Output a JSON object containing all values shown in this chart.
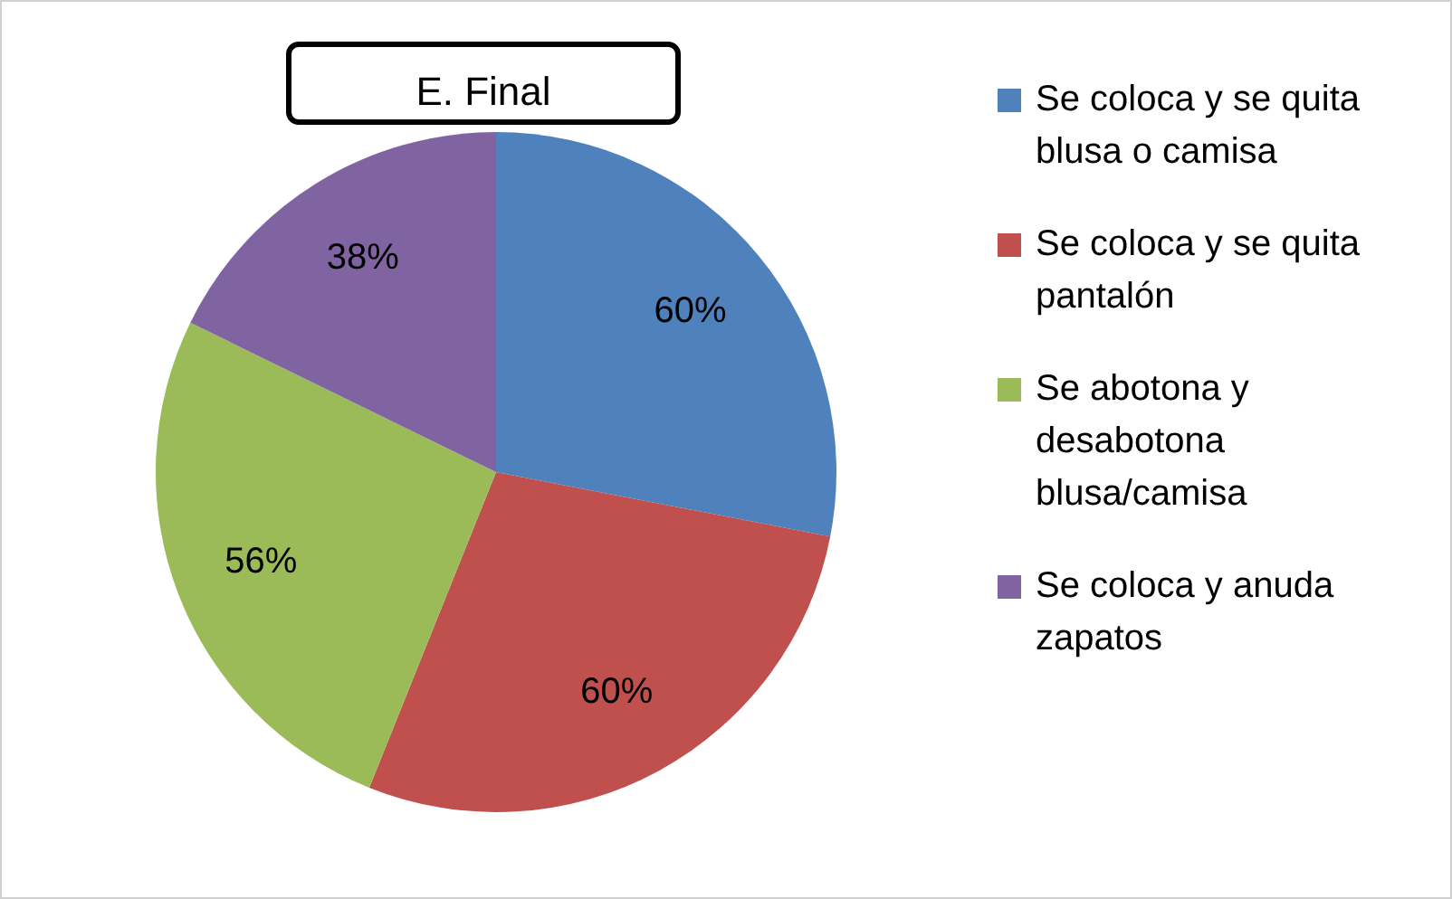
{
  "chart_data": {
    "type": "pie",
    "title": "E. Final",
    "categories": [
      "Se coloca y se quita blusa o camisa",
      "Se coloca y se quita pantalón",
      "Se abotona y desabotona blusa/camisa",
      "Se coloca y anuda zapatos"
    ],
    "values": [
      60,
      60,
      56,
      38
    ],
    "colors": [
      "#4f81bd",
      "#c0504d",
      "#9bbb59",
      "#8064a2"
    ],
    "value_labels": [
      "60%",
      "60%",
      "56%",
      "38%"
    ],
    "legend": "right"
  }
}
